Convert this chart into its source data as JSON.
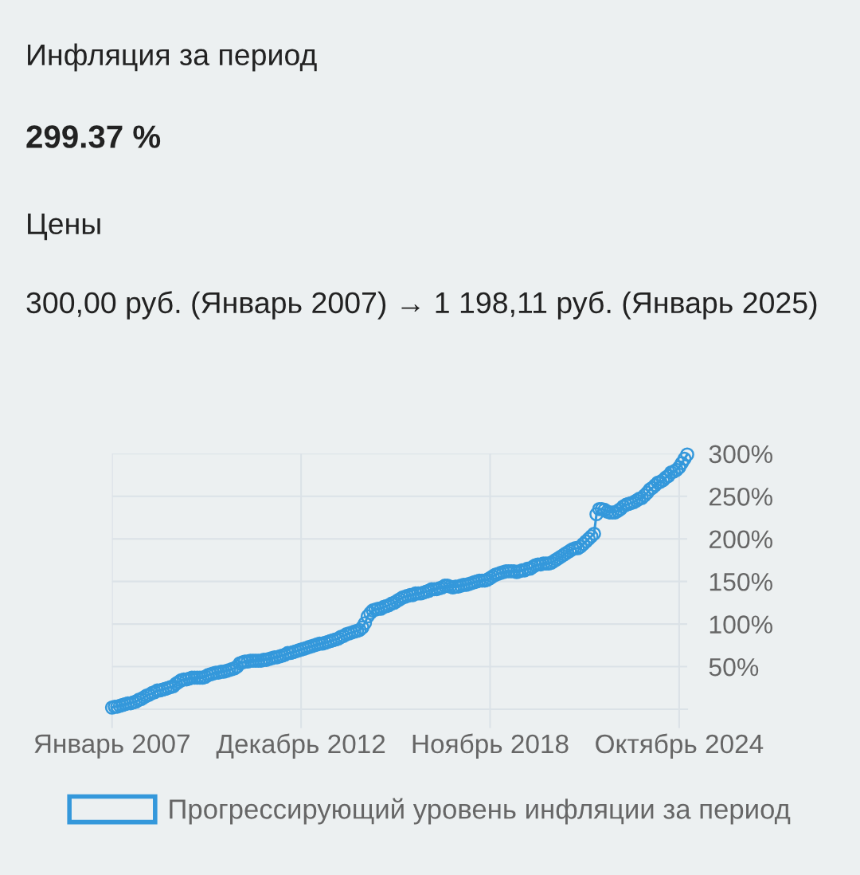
{
  "chart_data": {
    "type": "line",
    "title": "Инфляция за период",
    "subtitle": "299.37 %",
    "annotations": [
      "Цены",
      "300,00 руб. (Январь 2007) → 1 198,11 руб. (Январь 2025)"
    ],
    "x": [
      "2007-01",
      "2007-02",
      "2007-03",
      "2007-04",
      "2007-05",
      "2007-06",
      "2007-07",
      "2007-08",
      "2007-09",
      "2007-10",
      "2007-11",
      "2007-12",
      "2008-01",
      "2008-02",
      "2008-03",
      "2008-04",
      "2008-05",
      "2008-06",
      "2008-07",
      "2008-08",
      "2008-09",
      "2008-10",
      "2008-11",
      "2008-12",
      "2009-01",
      "2009-02",
      "2009-03",
      "2009-04",
      "2009-05",
      "2009-06",
      "2009-07",
      "2009-08",
      "2009-09",
      "2009-10",
      "2009-11",
      "2009-12",
      "2010-01",
      "2010-02",
      "2010-03",
      "2010-04",
      "2010-05",
      "2010-06",
      "2010-07",
      "2010-08",
      "2010-09",
      "2010-10",
      "2010-11",
      "2010-12",
      "2011-01",
      "2011-02",
      "2011-03",
      "2011-04",
      "2011-05",
      "2011-06",
      "2011-07",
      "2011-08",
      "2011-09",
      "2011-10",
      "2011-11",
      "2011-12",
      "2012-01",
      "2012-02",
      "2012-03",
      "2012-04",
      "2012-05",
      "2012-06",
      "2012-07",
      "2012-08",
      "2012-09",
      "2012-10",
      "2012-11",
      "2012-12",
      "2013-01",
      "2013-02",
      "2013-03",
      "2013-04",
      "2013-05",
      "2013-06",
      "2013-07",
      "2013-08",
      "2013-09",
      "2013-10",
      "2013-11",
      "2013-12",
      "2014-01",
      "2014-02",
      "2014-03",
      "2014-04",
      "2014-05",
      "2014-06",
      "2014-07",
      "2014-08",
      "2014-09",
      "2014-10",
      "2014-11",
      "2014-12",
      "2015-01",
      "2015-02",
      "2015-03",
      "2015-04",
      "2015-05",
      "2015-06",
      "2015-07",
      "2015-08",
      "2015-09",
      "2015-10",
      "2015-11",
      "2015-12",
      "2016-01",
      "2016-02",
      "2016-03",
      "2016-04",
      "2016-05",
      "2016-06",
      "2016-07",
      "2016-08",
      "2016-09",
      "2016-10",
      "2016-11",
      "2016-12",
      "2017-01",
      "2017-02",
      "2017-03",
      "2017-04",
      "2017-05",
      "2017-06",
      "2017-07",
      "2017-08",
      "2017-09",
      "2017-10",
      "2017-11",
      "2017-12",
      "2018-01",
      "2018-02",
      "2018-03",
      "2018-04",
      "2018-05",
      "2018-06",
      "2018-07",
      "2018-08",
      "2018-09",
      "2018-10",
      "2018-11",
      "2018-12",
      "2019-01",
      "2019-02",
      "2019-03",
      "2019-04",
      "2019-05",
      "2019-06",
      "2019-07",
      "2019-08",
      "2019-09",
      "2019-10",
      "2019-11",
      "2019-12",
      "2020-01",
      "2020-02",
      "2020-03",
      "2020-04",
      "2020-05",
      "2020-06",
      "2020-07",
      "2020-08",
      "2020-09",
      "2020-10",
      "2020-11",
      "2020-12",
      "2021-01",
      "2021-02",
      "2021-03",
      "2021-04",
      "2021-05",
      "2021-06",
      "2021-07",
      "2021-08",
      "2021-09",
      "2021-10",
      "2021-11",
      "2021-12",
      "2022-01",
      "2022-02",
      "2022-03",
      "2022-04",
      "2022-05",
      "2022-06",
      "2022-07",
      "2022-08",
      "2022-09",
      "2022-10",
      "2022-11",
      "2022-12",
      "2023-01",
      "2023-02",
      "2023-03",
      "2023-04",
      "2023-05",
      "2023-06",
      "2023-07",
      "2023-08",
      "2023-09",
      "2023-10",
      "2023-11",
      "2023-12",
      "2024-01",
      "2024-02",
      "2024-03",
      "2024-04",
      "2024-05",
      "2024-06",
      "2024-07",
      "2024-08",
      "2024-09",
      "2024-10",
      "2024-11",
      "2024-12",
      "2025-01"
    ],
    "series": [
      {
        "name": "Прогрессирующий уровень инфляции за период",
        "color": "#3498db",
        "values": [
          2,
          3,
          3,
          4,
          5,
          6,
          7,
          7,
          8,
          9,
          11,
          12,
          14,
          16,
          17,
          19,
          20,
          22,
          22,
          23,
          24,
          25,
          26,
          27,
          30,
          32,
          34,
          35,
          35,
          36,
          37,
          37,
          37,
          37,
          37,
          38,
          40,
          41,
          42,
          43,
          43,
          44,
          44,
          45,
          46,
          47,
          48,
          50,
          54,
          55,
          56,
          56,
          57,
          57,
          57,
          57,
          57,
          58,
          58,
          59,
          60,
          61,
          61,
          62,
          63,
          64,
          66,
          66,
          67,
          68,
          69,
          70,
          71,
          72,
          73,
          74,
          75,
          76,
          77,
          77,
          78,
          79,
          80,
          81,
          82,
          83,
          85,
          86,
          88,
          89,
          90,
          91,
          92,
          93,
          96,
          101,
          109,
          113,
          116,
          117,
          118,
          118,
          120,
          121,
          122,
          124,
          125,
          127,
          129,
          131,
          132,
          133,
          134,
          134,
          136,
          136,
          136,
          137,
          138,
          139,
          141,
          141,
          141,
          142,
          143,
          145,
          145,
          144,
          143,
          144,
          144,
          145,
          146,
          146,
          147,
          148,
          149,
          150,
          151,
          151,
          151,
          152,
          154,
          156,
          158,
          159,
          160,
          161,
          162,
          162,
          162,
          162,
          161,
          162,
          163,
          163,
          165,
          165,
          167,
          169,
          170,
          170,
          171,
          171,
          171,
          172,
          174,
          176,
          178,
          180,
          182,
          184,
          186,
          188,
          189,
          189,
          191,
          194,
          197,
          200,
          203,
          206,
          229,
          235,
          235,
          234,
          232,
          231,
          231,
          231,
          233,
          235,
          238,
          240,
          241,
          242,
          243,
          245,
          247,
          248,
          251,
          254,
          258,
          260,
          263,
          266,
          267,
          269,
          272,
          274,
          278,
          279,
          281,
          284,
          289,
          294,
          299
        ]
      }
    ],
    "xlim": [
      "2007-01",
      "2025-01"
    ],
    "xticks": [
      {
        "value": "2007-01",
        "label": "Январь 2007"
      },
      {
        "value": "2012-12",
        "label": "Декабрь 2012"
      },
      {
        "value": "2018-11",
        "label": "Ноябрь 2018"
      },
      {
        "value": "2024-10",
        "label": "Октябрь 2024"
      }
    ],
    "ylim": [
      0,
      300
    ],
    "yticks": [
      {
        "value": 0,
        "label": null
      },
      {
        "value": 50,
        "label": "50%"
      },
      {
        "value": 100,
        "label": "100%"
      },
      {
        "value": 150,
        "label": "150%"
      },
      {
        "value": 200,
        "label": "200%"
      },
      {
        "value": 250,
        "label": "250%"
      },
      {
        "value": 300,
        "label": "300%"
      }
    ],
    "grid": true,
    "legend": "bottom",
    "marker": "circle",
    "line_style": "solid"
  }
}
